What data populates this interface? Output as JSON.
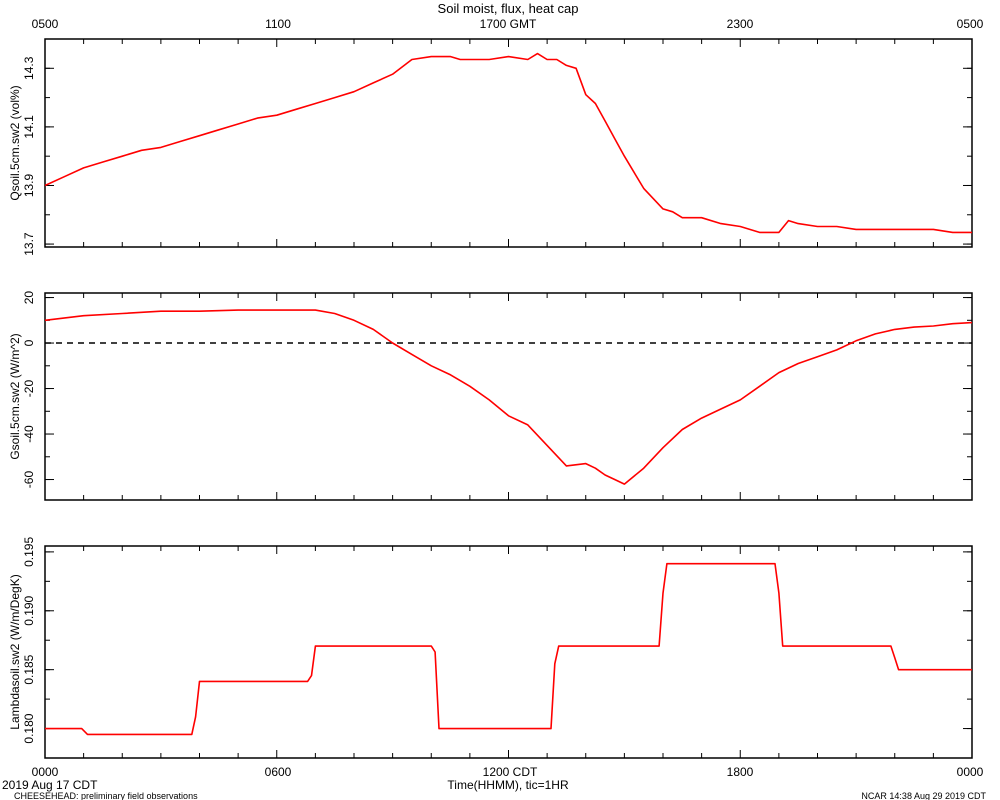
{
  "title": "Soil moist, flux, heat cap",
  "line_color": "#ff0000",
  "top_axis": {
    "ticks": [
      "0500",
      "1100",
      "1700 GMT",
      "2300",
      "0500"
    ]
  },
  "bottom_axis": {
    "ticks": [
      "0000",
      "0600",
      "1200 CDT",
      "1800",
      "0000"
    ],
    "label": "Time(HHMM), tic=1HR"
  },
  "footer": {
    "date": "2019 Aug 17 CDT",
    "project": "CHEESEHEAD: preliminary field observations",
    "stamp": "NCAR 14:38 Aug 29 2019 CDT"
  },
  "chart_data": [
    {
      "type": "line",
      "ylabel": "Qsoil.5cm.sw2 (vol%)",
      "xlim": [
        0,
        24
      ],
      "ylim": [
        13.69,
        14.4
      ],
      "yticks": [
        "13.7",
        "13.9",
        "14.1",
        "14.3"
      ],
      "zero_line": false,
      "x": [
        0,
        0.5,
        1,
        1.5,
        2,
        2.5,
        3,
        3.5,
        4,
        4.5,
        5,
        5.5,
        6,
        6.5,
        7,
        7.5,
        8,
        8.5,
        9,
        9.5,
        10,
        10.25,
        10.5,
        10.75,
        11,
        11.5,
        12,
        12.5,
        12.75,
        13,
        13.25,
        13.5,
        13.75,
        14,
        14.25,
        14.5,
        14.75,
        15,
        15.5,
        16,
        16.25,
        16.5,
        17,
        17.5,
        18,
        18.5,
        19,
        19.25,
        19.5,
        20,
        20.5,
        21,
        21.5,
        22,
        22.5,
        23,
        23.5,
        24
      ],
      "y": [
        13.9,
        13.93,
        13.96,
        13.98,
        14.0,
        14.02,
        14.03,
        14.05,
        14.07,
        14.09,
        14.11,
        14.13,
        14.14,
        14.16,
        14.18,
        14.2,
        14.22,
        14.25,
        14.28,
        14.33,
        14.34,
        14.34,
        14.34,
        14.33,
        14.33,
        14.33,
        14.34,
        14.33,
        14.35,
        14.33,
        14.33,
        14.31,
        14.3,
        14.21,
        14.18,
        14.12,
        14.06,
        14.0,
        13.89,
        13.82,
        13.81,
        13.79,
        13.79,
        13.77,
        13.76,
        13.74,
        13.74,
        13.78,
        13.77,
        13.76,
        13.76,
        13.75,
        13.75,
        13.75,
        13.75,
        13.75,
        13.74,
        13.74
      ]
    },
    {
      "type": "line",
      "ylabel": "Gsoil.5cm.sw2 (W/m^2)",
      "xlim": [
        0,
        24
      ],
      "ylim": [
        -69,
        22
      ],
      "yticks": [
        "20",
        "0",
        "-20",
        "-40",
        "-60"
      ],
      "zero_line": true,
      "x": [
        0,
        1,
        2,
        3,
        4,
        5,
        6,
        7,
        7.5,
        8,
        8.5,
        9,
        9.5,
        10,
        10.5,
        11,
        11.5,
        12,
        12.5,
        13,
        13.5,
        14,
        14.25,
        14.5,
        14.75,
        15,
        15.5,
        16,
        16.5,
        17,
        17.5,
        18,
        18.5,
        19,
        19.5,
        20,
        20.5,
        21,
        21.5,
        22,
        22.5,
        23,
        23.5,
        24
      ],
      "y": [
        10,
        12,
        13,
        14,
        14,
        14.5,
        14.5,
        14.5,
        13,
        10,
        6,
        0,
        -5,
        -10,
        -14,
        -19,
        -25,
        -32,
        -36,
        -45,
        -54,
        -53,
        -55,
        -58,
        -60,
        -62,
        -55,
        -46,
        -38,
        -33,
        -29,
        -25,
        -19,
        -13,
        -9,
        -6,
        -3,
        1,
        4,
        6,
        7,
        7.5,
        8.5,
        9
      ]
    },
    {
      "type": "line",
      "ylabel": "Lambdasoil.sw2 (W/m/DegK)",
      "xlim": [
        0,
        24
      ],
      "ylim": [
        0.1775,
        0.1955
      ],
      "yticks": [
        "0.180",
        "0.185",
        "0.190",
        "0.195"
      ],
      "zero_line": false,
      "x": [
        0,
        0.95,
        1.1,
        3.8,
        3.9,
        4.0,
        6.8,
        6.9,
        7.0,
        10.0,
        10.1,
        10.2,
        13.1,
        13.2,
        13.3,
        15.9,
        16.0,
        16.1,
        18.9,
        19.0,
        19.1,
        21.9,
        22.0,
        22.1,
        24
      ],
      "y": [
        0.18,
        0.18,
        0.1795,
        0.1795,
        0.181,
        0.184,
        0.184,
        0.1845,
        0.187,
        0.187,
        0.1865,
        0.18,
        0.18,
        0.1855,
        0.187,
        0.187,
        0.1915,
        0.194,
        0.194,
        0.1915,
        0.187,
        0.187,
        0.186,
        0.185,
        0.185
      ]
    }
  ]
}
